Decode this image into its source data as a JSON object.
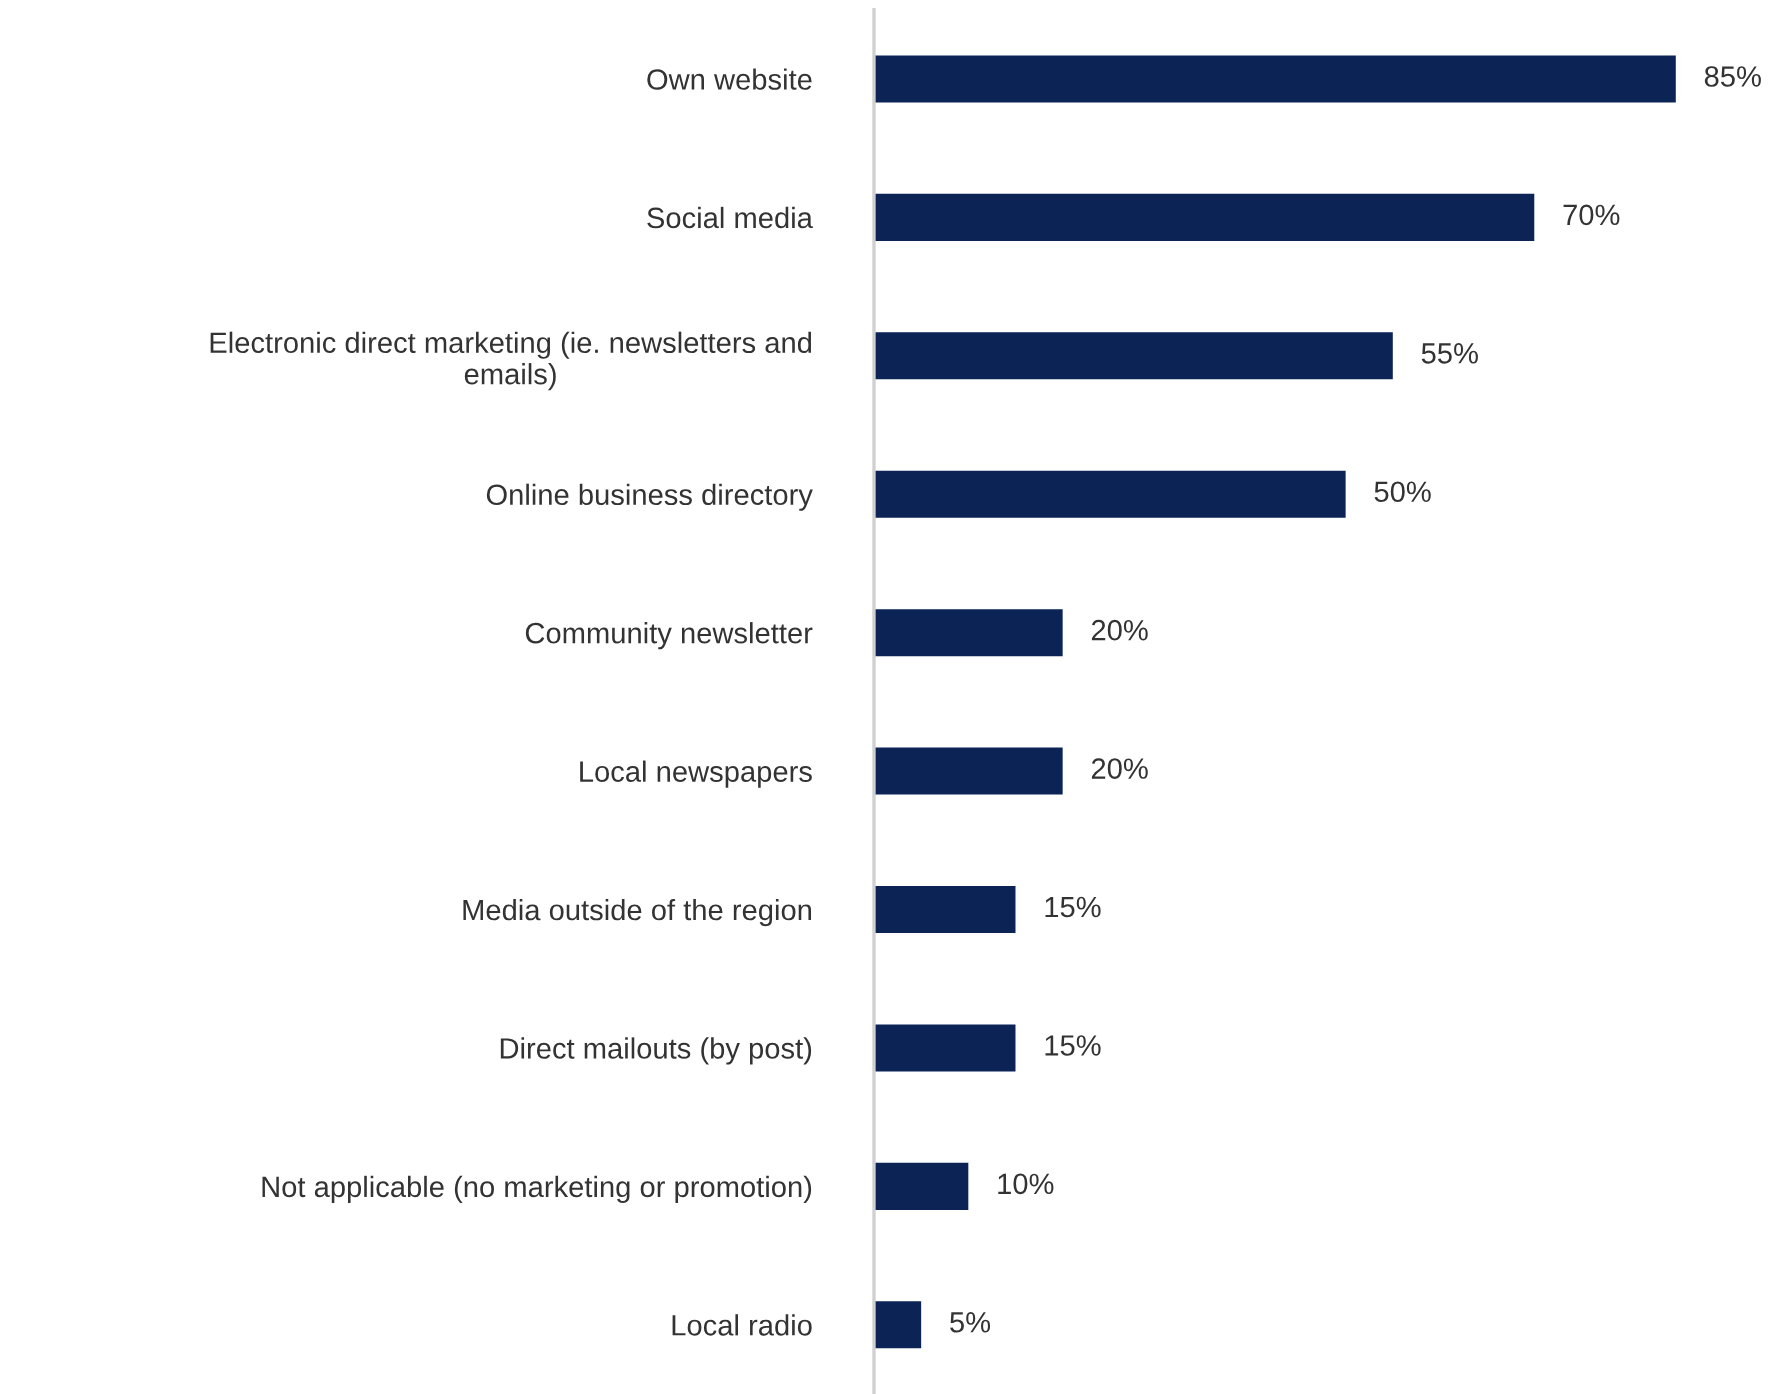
{
  "chart_data": {
    "type": "bar",
    "orientation": "horizontal",
    "categories": [
      "Own website",
      "Social media",
      "Electronic direct marketing (ie. newsletters and emails)",
      "Online business directory",
      "Community newsletter",
      "Local newspapers",
      "Media outside of the region",
      "Direct mailouts (by post)",
      "Not applicable (no marketing or promotion)",
      "Local radio"
    ],
    "values": [
      85,
      70,
      55,
      50,
      20,
      20,
      15,
      15,
      10,
      5
    ],
    "value_labels": [
      "85%",
      "70%",
      "55%",
      "50%",
      "20%",
      "20%",
      "15%",
      "15%",
      "10%",
      "5%"
    ],
    "color": "#0c2356",
    "grid": false,
    "legend": false
  }
}
